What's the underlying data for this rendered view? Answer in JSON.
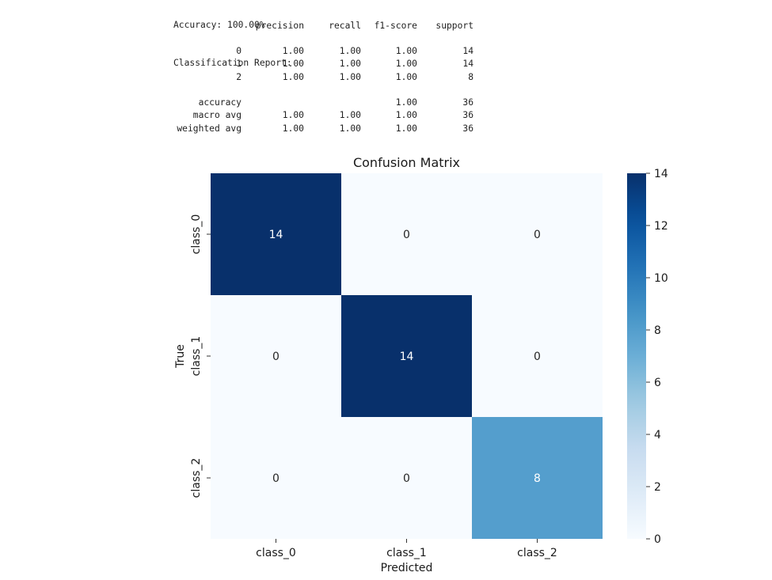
{
  "report": {
    "accuracy_line": "Accuracy: 100.00%",
    "report_title": "Classification Report:",
    "headers": [
      "precision",
      "recall",
      "f1-score",
      "support"
    ],
    "rows": [
      {
        "label": "0",
        "precision": "1.00",
        "recall": "1.00",
        "f1": "1.00",
        "support": "14"
      },
      {
        "label": "1",
        "precision": "1.00",
        "recall": "1.00",
        "f1": "1.00",
        "support": "14"
      },
      {
        "label": "2",
        "precision": "1.00",
        "recall": "1.00",
        "f1": "1.00",
        "support": "8"
      }
    ],
    "summary": [
      {
        "label": "accuracy",
        "precision": "",
        "recall": "",
        "f1": "1.00",
        "support": "36"
      },
      {
        "label": "macro avg",
        "precision": "1.00",
        "recall": "1.00",
        "f1": "1.00",
        "support": "36"
      },
      {
        "label": "weighted avg",
        "precision": "1.00",
        "recall": "1.00",
        "f1": "1.00",
        "support": "36"
      }
    ]
  },
  "chart_data": {
    "type": "heatmap",
    "title": "Confusion Matrix",
    "xlabel": "Predicted",
    "ylabel": "True",
    "x_categories": [
      "class_0",
      "class_1",
      "class_2"
    ],
    "y_categories": [
      "class_0",
      "class_1",
      "class_2"
    ],
    "values": [
      [
        14,
        0,
        0
      ],
      [
        0,
        14,
        0
      ],
      [
        0,
        0,
        8
      ]
    ],
    "colormap": "Blues",
    "vmin": 0,
    "vmax": 14,
    "colorbar_ticks": [
      0,
      2,
      4,
      6,
      8,
      10,
      12,
      14
    ],
    "annotations": true
  }
}
